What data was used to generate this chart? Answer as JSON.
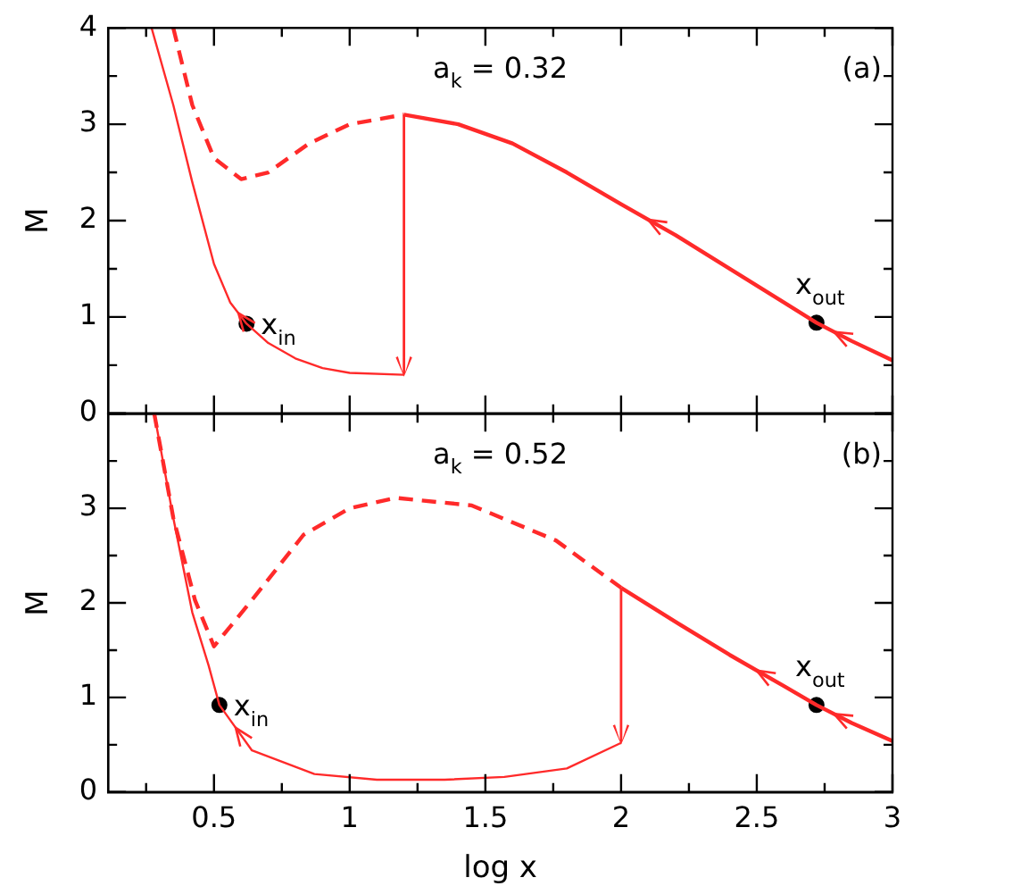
{
  "chart_data": [
    {
      "type": "line",
      "ylabel": "M",
      "xlim": [
        0.11,
        3
      ],
      "ylim": [
        0,
        4
      ],
      "tick_labels": "y",
      "xticks": [
        {
          "value": 0.25,
          "label": null
        },
        {
          "value": 0.5,
          "label": null
        },
        {
          "value": 0.75,
          "label": null
        },
        {
          "value": 1,
          "label": null
        },
        {
          "value": 1.25,
          "label": null
        },
        {
          "value": 1.5,
          "label": null
        },
        {
          "value": 1.75,
          "label": null
        },
        {
          "value": 2,
          "label": null
        },
        {
          "value": 2.25,
          "label": null
        },
        {
          "value": 2.5,
          "label": null
        },
        {
          "value": 2.75,
          "label": null
        },
        {
          "value": 3,
          "label": null
        }
      ],
      "yticks": [
        0,
        {
          "value": 0.5,
          "label": null
        },
        1,
        {
          "value": 1.5,
          "label": null
        },
        2,
        {
          "value": 2.5,
          "label": null
        },
        3,
        {
          "value": 3.5,
          "label": null
        },
        4
      ],
      "series": [
        {
          "type": "line",
          "color": "#ff2a2a",
          "line_style": "solid",
          "x": [
            0.27,
            0.35,
            0.42,
            0.5,
            0.56,
            0.62,
            0.7,
            0.8,
            0.9,
            1.0,
            1.2
          ],
          "values": [
            4,
            3.2,
            2.4,
            1.55,
            1.15,
            0.93,
            0.73,
            0.57,
            0.47,
            0.42,
            0.4
          ]
        },
        {
          "type": "line",
          "color": "#ff2a2a",
          "line_style": "dashed",
          "x": [
            0.35,
            0.42,
            0.5,
            0.6,
            0.7,
            0.85,
            1.0,
            1.2
          ],
          "values": [
            4,
            3.2,
            2.65,
            2.43,
            2.5,
            2.8,
            3.0,
            3.1
          ]
        },
        {
          "type": "line",
          "color": "#ff2a2a",
          "line_style": "solid",
          "x": [
            1.2,
            1.4,
            1.6,
            1.8,
            2.0,
            2.2,
            2.4,
            2.6,
            2.72,
            2.85,
            3.0
          ],
          "values": [
            3.1,
            3.0,
            2.8,
            2.5,
            2.17,
            1.85,
            1.5,
            1.15,
            0.94,
            0.75,
            0.55
          ]
        },
        {
          "type": "scatter",
          "color": "#000000",
          "marker": "circle",
          "x": [
            0.62,
            2.72
          ],
          "values": [
            0.93,
            0.94
          ]
        }
      ],
      "annotations": [
        "a$_{k}$ = 0.32",
        "(a)",
        {
          "text": "x$_{in}$",
          "x": 0.62,
          "y": 0.93
        },
        {
          "text": "x$_{out}$",
          "x": 2.72,
          "y": 0.94
        }
      ]
    },
    {
      "type": "line",
      "ylabel": "M",
      "xlabel": "log x",
      "xlim": [
        0.11,
        3
      ],
      "ylim": [
        0,
        4
      ],
      "xticks": [
        {
          "value": 0.25,
          "label": null
        },
        0.5,
        {
          "value": 0.75,
          "label": null
        },
        1,
        {
          "value": 1.25,
          "label": null
        },
        1.5,
        {
          "value": 1.75,
          "label": null
        },
        2,
        {
          "value": 2.25,
          "label": null
        },
        2.5,
        {
          "value": 2.75,
          "label": null
        },
        3
      ],
      "yticks": [
        0,
        {
          "value": 0.5,
          "label": null
        },
        1,
        {
          "value": 1.5,
          "label": null
        },
        2,
        {
          "value": 2.5,
          "label": null
        },
        3,
        {
          "value": 3.5,
          "label": null
        },
        {
          "value": 4,
          "label": null
        }
      ],
      "series": [
        {
          "type": "line",
          "color": "#ff2a2a",
          "line_style": "solid",
          "x": [
            0.28,
            0.35,
            0.42,
            0.48,
            0.52,
            0.64,
            0.87,
            1.1,
            1.35,
            1.57,
            1.8,
            2.0
          ],
          "values": [
            4,
            2.9,
            1.9,
            1.34,
            0.92,
            0.44,
            0.19,
            0.13,
            0.13,
            0.16,
            0.25,
            0.52
          ]
        },
        {
          "type": "line",
          "color": "#ff2a2a",
          "line_style": "dashed",
          "x": [
            0.28,
            0.35,
            0.43,
            0.5,
            0.64,
            0.83,
            1.0,
            1.17,
            1.45,
            1.76,
            2.0
          ],
          "values": [
            4,
            2.9,
            2.03,
            1.54,
            2.03,
            2.72,
            3.0,
            3.11,
            3.03,
            2.66,
            2.16
          ]
        },
        {
          "type": "line",
          "color": "#ff2a2a",
          "line_style": "solid",
          "x": [
            2.0,
            2.2,
            2.4,
            2.6,
            2.72,
            2.85,
            3.0
          ],
          "values": [
            2.16,
            1.8,
            1.45,
            1.12,
            0.92,
            0.73,
            0.54
          ]
        },
        {
          "type": "scatter",
          "color": "#000000",
          "marker": "circle",
          "x": [
            0.52,
            2.72
          ],
          "values": [
            0.92,
            0.92
          ]
        }
      ],
      "annotations": [
        "a$_{k}$ = 0.52",
        "(b)",
        {
          "text": "x$_{in}$",
          "x": 0.52,
          "y": 0.92
        },
        {
          "text": "x$_{out}$",
          "x": 2.72,
          "y": 0.92
        }
      ]
    }
  ]
}
